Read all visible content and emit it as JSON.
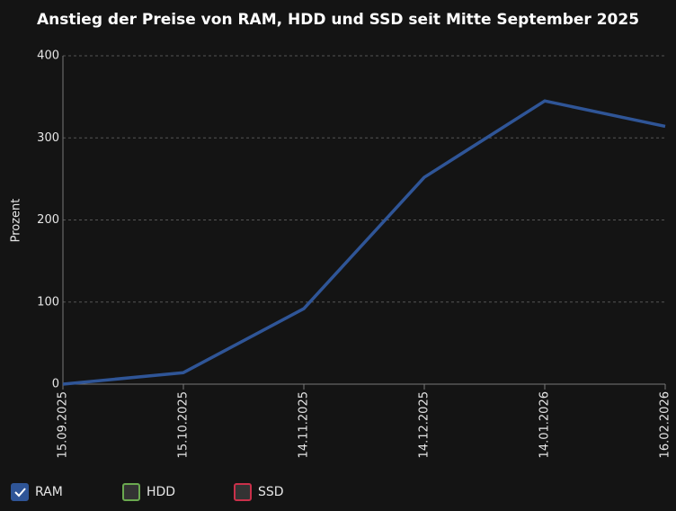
{
  "chart_data": {
    "type": "line",
    "title": "Anstieg der Preise von RAM, HDD und SSD seit Mitte September 2025",
    "y_label": "Prozent",
    "categories": [
      "15.09.2025",
      "15.10.2025",
      "14.11.2025",
      "14.12.2025",
      "14.01.2026",
      "16.02.2026"
    ],
    "series": [
      {
        "name": "RAM",
        "color": "#2f5597",
        "visible": true,
        "values": [
          0,
          14,
          92,
          252,
          345,
          314
        ]
      },
      {
        "name": "HDD",
        "color": "#6aa84f",
        "visible": false,
        "values": [
          null,
          null,
          null,
          null,
          null,
          null
        ]
      },
      {
        "name": "SSD",
        "color": "#c9304a",
        "visible": false,
        "values": [
          null,
          null,
          null,
          null,
          null,
          null
        ]
      }
    ],
    "ylim": [
      0,
      400
    ],
    "yticks": [
      0,
      100,
      200,
      300,
      400
    ],
    "grid": true,
    "legend": "bottom-left"
  }
}
